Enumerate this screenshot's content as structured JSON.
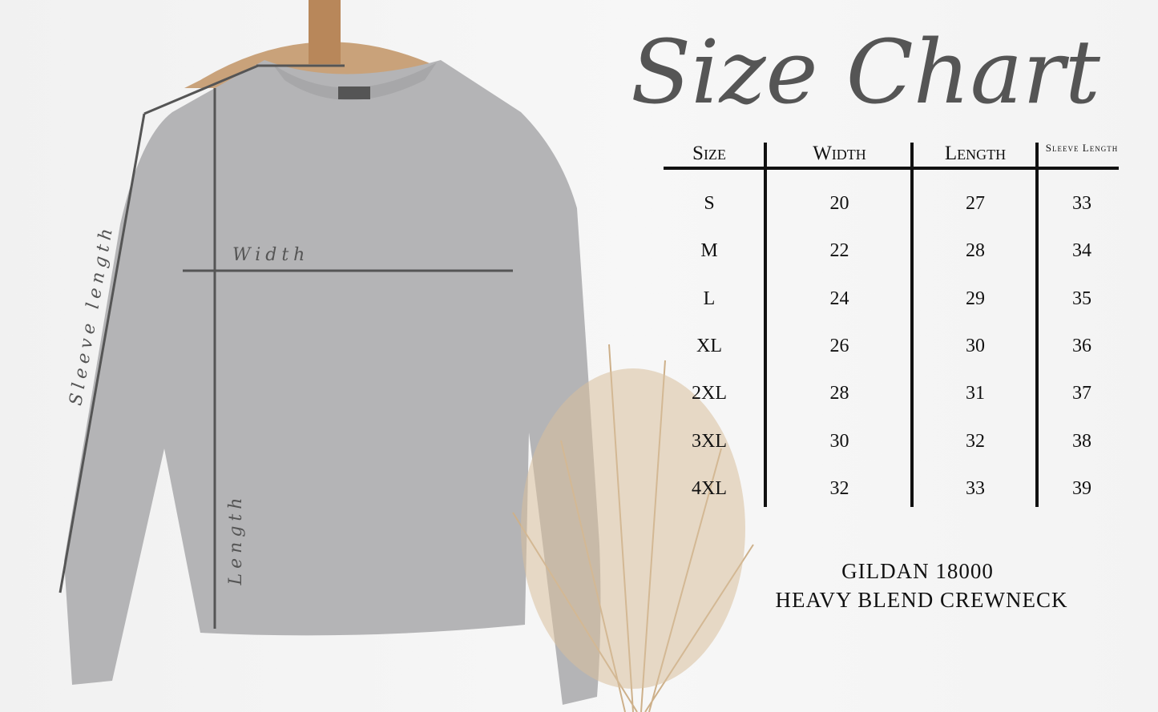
{
  "title": "Size Chart",
  "garment_labels": {
    "width": "Width",
    "length": "Length",
    "sleeve": "Sleeve length"
  },
  "table": {
    "headers": [
      "Size",
      "Width",
      "Length",
      "Sleeve Length"
    ],
    "rows": [
      [
        "S",
        "20",
        "27",
        "33"
      ],
      [
        "M",
        "22",
        "28",
        "34"
      ],
      [
        "L",
        "24",
        "29",
        "35"
      ],
      [
        "XL",
        "26",
        "30",
        "36"
      ],
      [
        "2XL",
        "28",
        "31",
        "37"
      ],
      [
        "3XL",
        "30",
        "32",
        "38"
      ],
      [
        "4XL",
        "32",
        "33",
        "39"
      ]
    ]
  },
  "footer": {
    "line1": "GILDAN 18000",
    "line2": "HEAVY BLEND CREWNECK"
  },
  "colors": {
    "sweatshirt": "#b4b4b6",
    "title": "#555555",
    "table_lines": "#111111"
  }
}
